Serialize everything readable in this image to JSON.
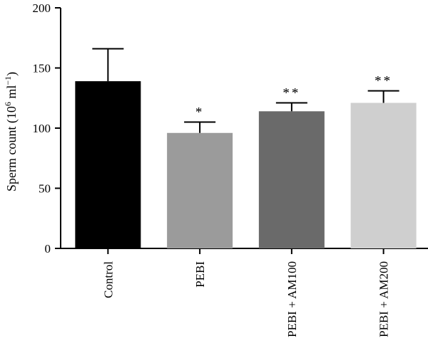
{
  "chart_data": {
    "type": "bar",
    "categories": [
      "Control",
      "PEBI",
      "PEBI + AM100",
      "PEBI + AM200"
    ],
    "values": [
      139,
      96,
      114,
      121
    ],
    "error_upper": [
      166,
      105,
      121,
      131
    ],
    "significance": [
      "",
      "*",
      "**",
      "**"
    ],
    "bar_colors": [
      "#000000",
      "#9b9b9b",
      "#6a6a6a",
      "#cfcfcf"
    ],
    "ylabel_main": "Sperm count (10",
    "ylabel_sup": "6",
    "ylabel_mid": " ml",
    "ylabel_sup2": "−1",
    "ylabel_end": ")",
    "ylim": [
      0,
      200
    ],
    "yticks": [
      0,
      50,
      100,
      150,
      200
    ],
    "grid": false
  }
}
